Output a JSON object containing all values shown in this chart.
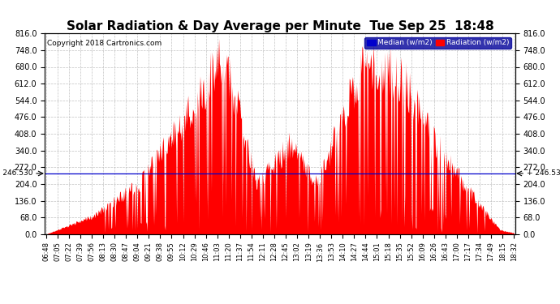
{
  "title": "Solar Radiation & Day Average per Minute  Tue Sep 25  18:48",
  "copyright": "Copyright 2018 Cartronics.com",
  "legend_median_label": "Median (w/m2)",
  "legend_radiation_label": "Radiation (w/m2)",
  "median_value": 246.53,
  "ylim": [
    0.0,
    816.0
  ],
  "yticks": [
    0.0,
    68.0,
    136.0,
    204.0,
    272.0,
    340.0,
    408.0,
    476.0,
    544.0,
    612.0,
    680.0,
    748.0,
    816.0
  ],
  "background_color": "#ffffff",
  "bar_color": "#ff0000",
  "median_line_color": "#0000cc",
  "grid_color": "#bbbbbb",
  "title_fontsize": 11,
  "tick_label_fontsize": 6,
  "x_tick_labels": [
    "06:48",
    "07:05",
    "07:22",
    "07:39",
    "07:56",
    "08:13",
    "08:30",
    "08:47",
    "09:04",
    "09:21",
    "09:38",
    "09:55",
    "10:12",
    "10:29",
    "10:46",
    "11:03",
    "11:20",
    "11:37",
    "11:54",
    "12:11",
    "12:28",
    "12:45",
    "13:02",
    "13:19",
    "13:36",
    "13:53",
    "14:10",
    "14:27",
    "14:44",
    "15:01",
    "15:18",
    "15:35",
    "15:52",
    "16:09",
    "16:26",
    "16:43",
    "17:00",
    "17:17",
    "17:34",
    "17:49",
    "18:15",
    "18:32"
  ],
  "num_points": 700
}
